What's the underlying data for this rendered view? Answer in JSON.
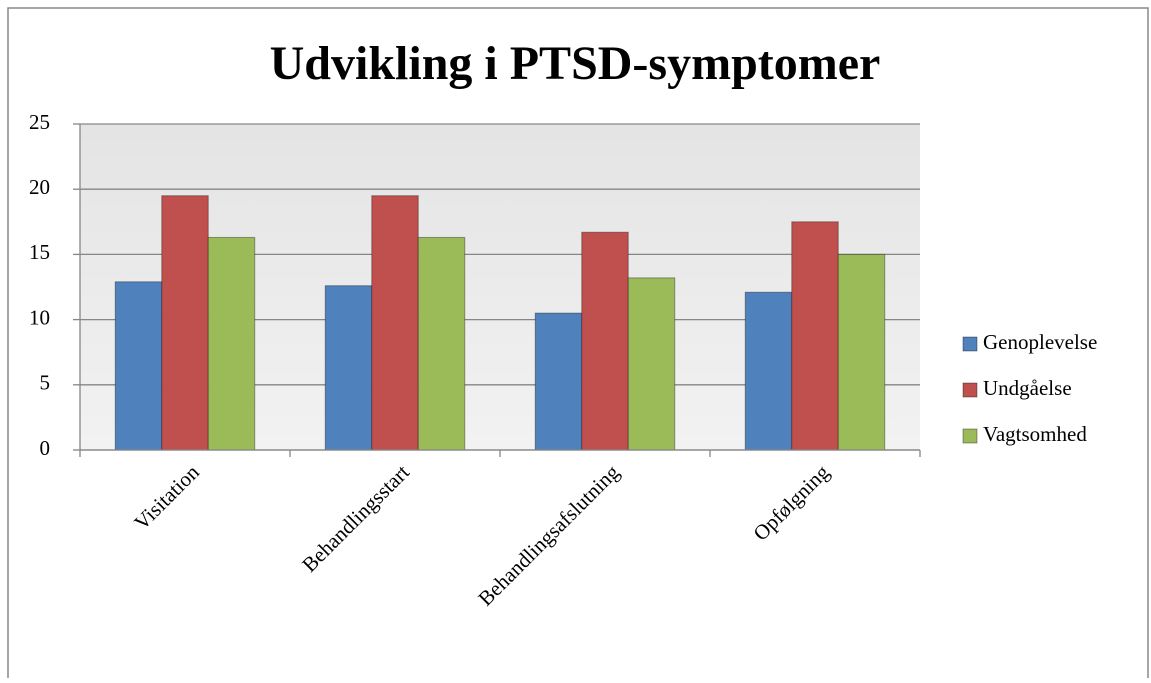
{
  "chart_data": {
    "type": "bar",
    "title": "Udvikling i PTSD-symptomer",
    "categories": [
      "Visitation",
      "Behandlingsstart",
      "Behandlingsafslutning",
      "Opfølgning"
    ],
    "series": [
      {
        "name": "Genoplevelse",
        "color": "#4f81bd",
        "values": [
          12.9,
          12.6,
          10.5,
          12.1
        ]
      },
      {
        "name": "Undgåelse",
        "color": "#c0504d",
        "values": [
          19.5,
          19.5,
          16.7,
          17.5
        ]
      },
      {
        "name": "Vagtsomhed",
        "color": "#9bbb59",
        "values": [
          16.3,
          16.3,
          13.2,
          15
        ]
      }
    ],
    "ylim": [
      0,
      25
    ],
    "yticks": [
      0,
      5,
      10,
      15,
      20,
      25
    ],
    "grid": true,
    "legend": "right"
  }
}
